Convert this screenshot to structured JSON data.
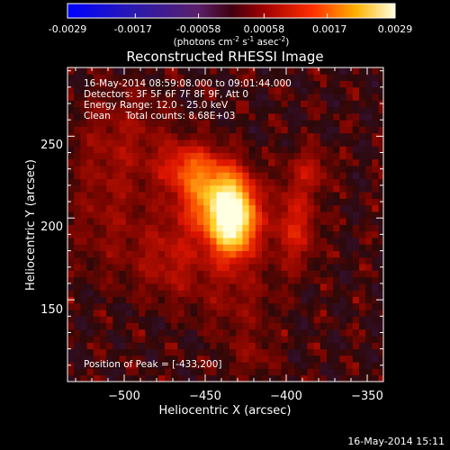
{
  "colorbar": {
    "ticks": [
      "-0.0029",
      "-0.0017",
      "-0.00058",
      "0.00058",
      "0.0017",
      "0.0029"
    ],
    "unit_prefix": "(photons cm",
    "unit_exp1": "-2",
    "unit_mid": " s",
    "unit_exp2": "-1",
    "unit_mid2": " asec",
    "unit_exp3": "-2",
    "unit_suffix": ")",
    "range": [
      -0.0029,
      0.0029
    ]
  },
  "chart_data": {
    "type": "heatmap",
    "title": "Reconstructed RHESSI Image",
    "xlabel": "Heliocentric X (arcsec)",
    "ylabel": "Heliocentric Y (arcsec)",
    "xlim": [
      -535,
      -340
    ],
    "ylim": [
      100,
      292
    ],
    "xticks": [
      -500,
      -450,
      -400,
      -350
    ],
    "xtick_labels": [
      "−500",
      "−450",
      "−400",
      "−350"
    ],
    "yticks": [
      150,
      200,
      250
    ],
    "ytick_labels": [
      "150",
      "200",
      "250"
    ],
    "peak": {
      "x": -433,
      "y": 200
    },
    "sources": [
      {
        "x": -433,
        "y": 200,
        "sx": 10,
        "sy": 16,
        "amp": 1.0
      },
      {
        "x": -448,
        "y": 215,
        "sx": 14,
        "sy": 16,
        "amp": 0.45
      },
      {
        "x": -462,
        "y": 232,
        "sx": 12,
        "sy": 10,
        "amp": 0.25
      },
      {
        "x": -395,
        "y": 195,
        "sx": 10,
        "sy": 18,
        "amp": 0.28
      },
      {
        "x": -385,
        "y": 230,
        "sx": 10,
        "sy": 10,
        "amp": 0.18
      },
      {
        "x": -470,
        "y": 175,
        "sx": 16,
        "sy": 18,
        "amp": 0.2
      },
      {
        "x": -500,
        "y": 250,
        "sx": 22,
        "sy": 22,
        "amp": 0.14
      },
      {
        "x": -510,
        "y": 200,
        "sx": 18,
        "sy": 28,
        "amp": 0.12
      },
      {
        "x": -430,
        "y": 150,
        "sx": 18,
        "sy": 18,
        "amp": 0.12
      },
      {
        "x": -420,
        "y": 115,
        "sx": 12,
        "sy": 10,
        "amp": 0.1
      }
    ],
    "info_lines": [
      "16-May-2014 08:59:08.000 to 09:01:44.000",
      "Detectors: 3F 5F 6F 7F 8F 9F, Att 0",
      "Energy Range: 12.0 - 25.0 keV",
      "Clean     Total counts: 8.68E+03"
    ],
    "peak_label": "Position of Peak = [-433,200]",
    "footer": "16-May-2014 15:11"
  }
}
